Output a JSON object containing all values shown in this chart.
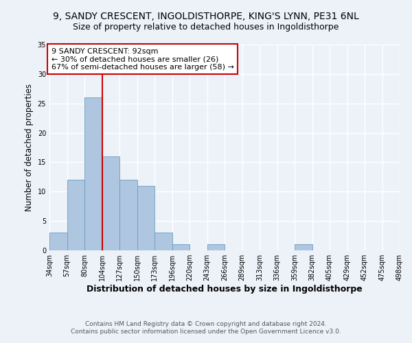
{
  "title": "9, SANDY CRESCENT, INGOLDISTHORPE, KING'S LYNN, PE31 6NL",
  "subtitle": "Size of property relative to detached houses in Ingoldisthorpe",
  "xlabel": "Distribution of detached houses by size in Ingoldisthorpe",
  "ylabel": "Number of detached properties",
  "bin_labels": [
    "34sqm",
    "57sqm",
    "80sqm",
    "104sqm",
    "127sqm",
    "150sqm",
    "173sqm",
    "196sqm",
    "220sqm",
    "243sqm",
    "266sqm",
    "289sqm",
    "313sqm",
    "336sqm",
    "359sqm",
    "382sqm",
    "405sqm",
    "429sqm",
    "452sqm",
    "475sqm",
    "498sqm"
  ],
  "bar_values": [
    3,
    12,
    26,
    16,
    12,
    11,
    3,
    1,
    0,
    1,
    0,
    0,
    0,
    0,
    1,
    0,
    0,
    0,
    0,
    0
  ],
  "bar_color": "#aec6df",
  "bar_edge_color": "#6a9ec0",
  "ylim": [
    0,
    35
  ],
  "yticks": [
    0,
    5,
    10,
    15,
    20,
    25,
    30,
    35
  ],
  "annotation_text": "9 SANDY CRESCENT: 92sqm\n← 30% of detached houses are smaller (26)\n67% of semi-detached houses are larger (58) →",
  "annotation_box_color": "#ffffff",
  "annotation_box_edge": "#cc0000",
  "footer_line1": "Contains HM Land Registry data © Crown copyright and database right 2024.",
  "footer_line2": "Contains public sector information licensed under the Open Government Licence v3.0.",
  "background_color": "#edf2f9",
  "grid_color": "#ffffff",
  "title_fontsize": 10,
  "subtitle_fontsize": 9,
  "xlabel_fontsize": 9,
  "ylabel_fontsize": 8.5,
  "tick_fontsize": 7,
  "annotation_fontsize": 8,
  "footer_fontsize": 6.5
}
